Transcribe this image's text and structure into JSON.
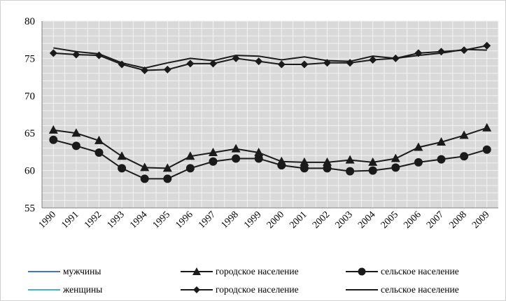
{
  "chart_data": {
    "type": "line",
    "x": [
      "1990",
      "1991",
      "1992",
      "1993",
      "1994",
      "1995",
      "1996",
      "1997",
      "1998",
      "1999",
      "2000",
      "2001",
      "2002",
      "2003",
      "2004",
      "2005",
      "2006",
      "2007",
      "2008",
      "2009"
    ],
    "ylim": [
      55,
      80
    ],
    "yticks": [
      55,
      60,
      65,
      70,
      75,
      80
    ],
    "grid": true,
    "legend_position": "bottom",
    "colors": {
      "men_line": "#4472c4",
      "women_line": "#4bacc6",
      "series_line": "#1a1a1a",
      "plot_bg": "#d9d9d9",
      "grid": "#f2f2f2"
    },
    "series": [
      {
        "name": "городское население",
        "group": "мужчины",
        "marker": "triangle",
        "values": [
          65.4,
          65.0,
          64.0,
          61.9,
          60.4,
          60.3,
          61.9,
          62.4,
          62.9,
          62.4,
          61.2,
          61.1,
          61.1,
          61.4,
          61.1,
          61.6,
          63.1,
          63.8,
          64.7,
          65.7
        ]
      },
      {
        "name": "сельское население",
        "group": "мужчины",
        "marker": "circle",
        "values": [
          64.1,
          63.3,
          62.4,
          60.3,
          58.9,
          58.9,
          60.3,
          61.2,
          61.6,
          61.6,
          60.7,
          60.3,
          60.3,
          59.9,
          60.0,
          60.4,
          61.1,
          61.5,
          61.9,
          62.8
        ]
      },
      {
        "name": "городское население",
        "group": "женщины",
        "marker": "diamond",
        "values": [
          75.7,
          75.5,
          75.4,
          74.2,
          73.4,
          73.5,
          74.3,
          74.3,
          75.0,
          74.6,
          74.2,
          74.2,
          74.4,
          74.4,
          74.8,
          75.0,
          75.7,
          75.9,
          76.1,
          76.7
        ]
      },
      {
        "name": "сельское население",
        "group": "женщины",
        "marker": "none",
        "values": [
          76.4,
          75.9,
          75.6,
          74.4,
          73.7,
          74.4,
          75.0,
          74.7,
          75.4,
          75.3,
          74.8,
          75.2,
          74.7,
          74.6,
          75.3,
          75.0,
          75.4,
          75.7,
          76.2,
          76.1
        ]
      }
    ]
  },
  "legend": {
    "men_label": "мужчины",
    "women_label": "женщины",
    "men_urban": "городское население",
    "men_rural": "сельское население",
    "women_urban": "городское население",
    "women_rural": "сельское население"
  }
}
